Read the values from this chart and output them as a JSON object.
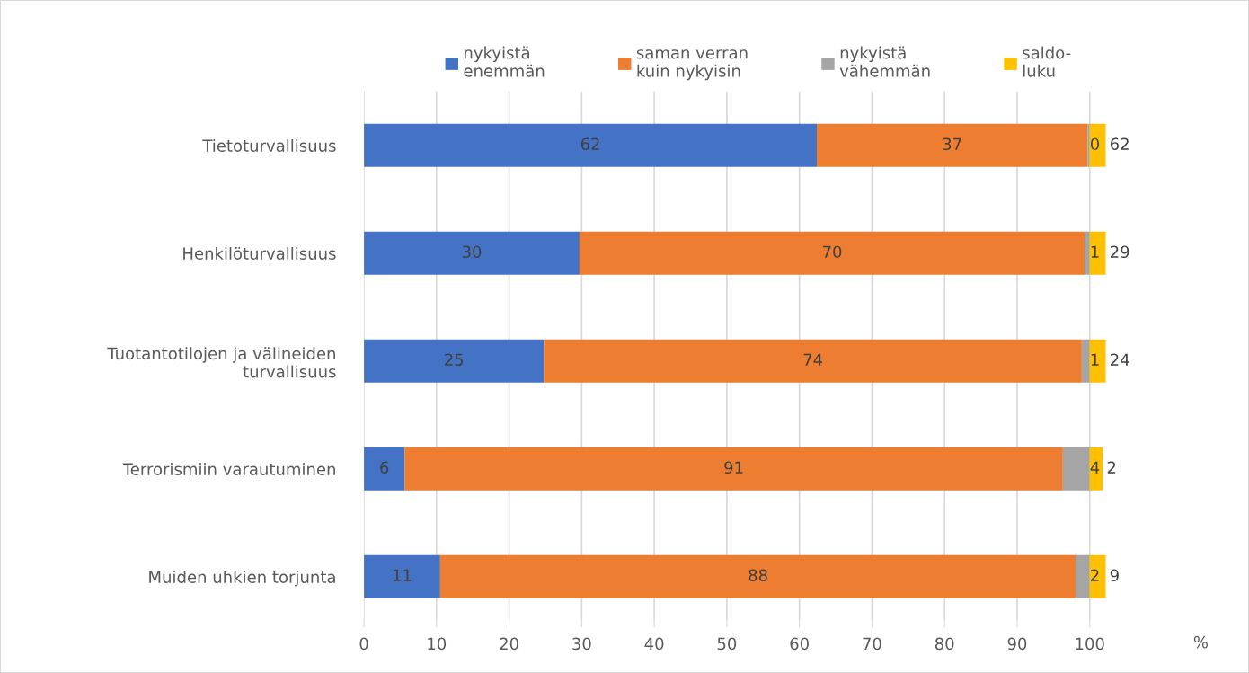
{
  "chart_data": {
    "type": "bar",
    "orientation": "horizontal",
    "stacked": true,
    "categories": [
      "Tietoturvallisuus",
      "Henkilöturvallisuus",
      "Tuotantotilojen ja välineiden\nturvallisuus",
      "Terrorismiin varautuminen",
      "Muiden uhkien torjunta"
    ],
    "series": [
      {
        "name": "nykyistä\nenemmän",
        "color": "#4472c4",
        "values": [
          62.4,
          29.7,
          24.8,
          5.6,
          10.5
        ],
        "value_labels": [
          "62",
          "30",
          "25",
          "6",
          "11"
        ]
      },
      {
        "name": "saman verran\nkuin nykyisin",
        "color": "#ed7d31",
        "values": [
          37.3,
          69.6,
          74.1,
          90.7,
          87.6
        ],
        "value_labels": [
          "37",
          "70",
          "74",
          "91",
          "88"
        ]
      },
      {
        "name": "nykyistä\nvähemmän",
        "color": "#a5a5a5",
        "values": [
          0.3,
          0.7,
          1.1,
          3.7,
          1.9
        ],
        "value_labels": [
          "0",
          "1",
          "1",
          "4",
          "2"
        ]
      },
      {
        "name": "saldo-\nluku",
        "color": "#ffc000",
        "values": [
          2.2,
          2.2,
          2.2,
          1.8,
          2.2
        ]
      }
    ],
    "annotations": [
      "62",
      "29",
      "24",
      "2",
      "9",
      "%"
    ],
    "xlim": [
      0,
      102.5
    ],
    "xticks": [
      0,
      10,
      20,
      30,
      40,
      50,
      60,
      70,
      80,
      90,
      100
    ],
    "grid": "x",
    "legend": "top"
  }
}
